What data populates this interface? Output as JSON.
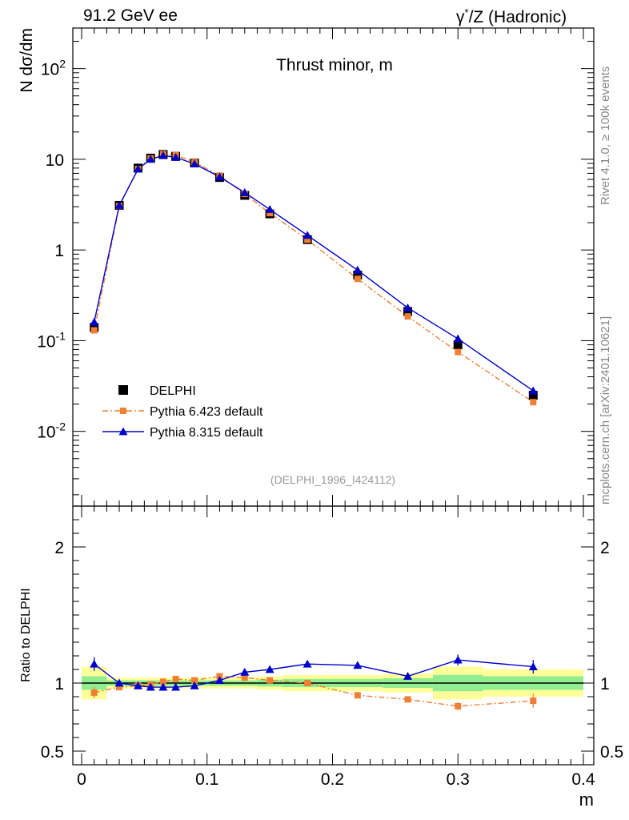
{
  "header": {
    "left": "91.2 GeV ee",
    "right_prefix": "γ",
    "right_sup": "*",
    "right_suffix": "/Z (Hadronic)"
  },
  "side_labels": {
    "rivet": "Rivet 4.1.0, ≥ 100k events",
    "mcplots": "mcplots.cern.ch [arXiv:2401.10621]"
  },
  "colors": {
    "data": "#000000",
    "pythia6": "#f07f33",
    "pythia8": "#0000cc",
    "band_inner": "#90ee90",
    "band_outer": "#ffff99"
  },
  "chart_data": {
    "type": "line",
    "title": "Thrust minor, m",
    "analysis_id": "(DELPHI_1996_I424112)",
    "ylabel_main": "N  dσ/dm",
    "ylabel_ratio": "Ratio to DELPHI",
    "xlabel": "m",
    "xlim": [
      0,
      0.4
    ],
    "ylim_main": [
      0.0015,
      280
    ],
    "yscale_main": "log",
    "ylim_ratio": [
      0.4,
      2.3
    ],
    "x_ticks": [
      "0",
      "0.1",
      "0.2",
      "0.3",
      "0.4"
    ],
    "y_ticks_main": [
      "10^-2",
      "10^-1",
      "1",
      "10",
      "10^2"
    ],
    "y_ticks_ratio": [
      "0.5",
      "1",
      "2"
    ],
    "legend": {
      "position": "middle-left",
      "entries": [
        "DELPHI",
        "Pythia 6.423 default",
        "Pythia 8.315 default"
      ]
    },
    "x": [
      0.01,
      0.03,
      0.045,
      0.055,
      0.065,
      0.075,
      0.09,
      0.11,
      0.13,
      0.15,
      0.18,
      0.22,
      0.26,
      0.3,
      0.36
    ],
    "bin_edges": [
      0.0,
      0.02,
      0.04,
      0.05,
      0.06,
      0.07,
      0.08,
      0.1,
      0.12,
      0.14,
      0.16,
      0.2,
      0.24,
      0.28,
      0.32,
      0.4
    ],
    "series": [
      {
        "name": "DELPHI",
        "values": [
          0.14,
          3.1,
          8.0,
          10.3,
          11.3,
          10.8,
          9.1,
          6.3,
          4.0,
          2.5,
          1.3,
          0.53,
          0.21,
          0.09,
          0.025
        ]
      },
      {
        "name": "Pythia 6.423 default",
        "values": [
          0.13,
          3.05,
          7.8,
          10.2,
          11.4,
          11.1,
          9.3,
          6.6,
          4.15,
          2.55,
          1.3,
          0.48,
          0.185,
          0.075,
          0.021
        ],
        "ratio": [
          0.93,
          0.97,
          0.98,
          0.99,
          1.01,
          1.03,
          1.02,
          1.05,
          1.04,
          1.02,
          1.0,
          0.91,
          0.88,
          0.83,
          0.87
        ],
        "ratio_err": [
          0.04,
          0.01,
          0.01,
          0.01,
          0.01,
          0.01,
          0.01,
          0.01,
          0.01,
          0.01,
          0.01,
          0.015,
          0.02,
          0.03,
          0.05
        ]
      },
      {
        "name": "Pythia 8.315 default",
        "values": [
          0.16,
          3.1,
          7.8,
          10.0,
          11.0,
          10.5,
          8.9,
          6.4,
          4.3,
          2.8,
          1.45,
          0.6,
          0.23,
          0.105,
          0.028
        ],
        "ratio": [
          1.14,
          1.0,
          0.98,
          0.97,
          0.97,
          0.97,
          0.98,
          1.02,
          1.08,
          1.1,
          1.14,
          1.13,
          1.05,
          1.17,
          1.12
        ],
        "ratio_err": [
          0.05,
          0.01,
          0.01,
          0.01,
          0.01,
          0.01,
          0.01,
          0.01,
          0.01,
          0.01,
          0.01,
          0.015,
          0.02,
          0.04,
          0.05
        ]
      }
    ],
    "ratio_band_inner": [
      0.05,
      0.02,
      0.02,
      0.02,
      0.02,
      0.02,
      0.02,
      0.02,
      0.02,
      0.025,
      0.03,
      0.03,
      0.035,
      0.06,
      0.05
    ],
    "ratio_band_outer": [
      0.12,
      0.04,
      0.04,
      0.04,
      0.04,
      0.04,
      0.04,
      0.04,
      0.04,
      0.05,
      0.06,
      0.06,
      0.07,
      0.12,
      0.1
    ]
  }
}
